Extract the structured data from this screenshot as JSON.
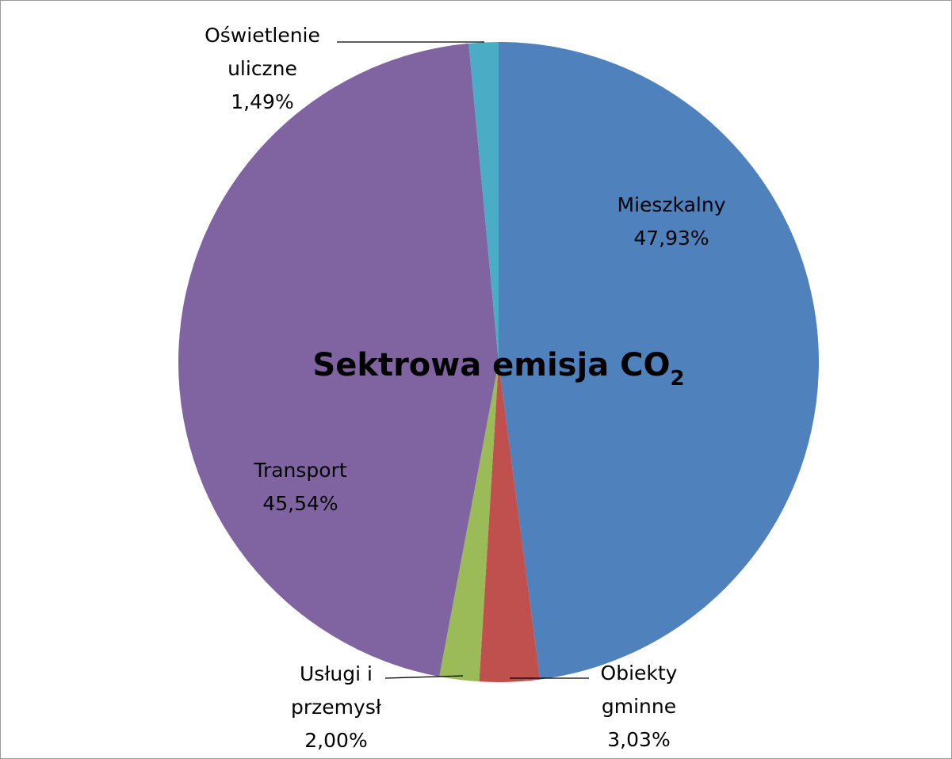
{
  "chart_data": {
    "type": "pie",
    "title": "Sektrowa emisja CO",
    "title_subscript": "2",
    "slices": [
      {
        "label_lines": [
          "Mieszkalny"
        ],
        "value": 47.93,
        "value_text": "47,93%",
        "color": "#4F81BD"
      },
      {
        "label_lines": [
          "Obiekty",
          "gminne"
        ],
        "value": 3.03,
        "value_text": "3,03%",
        "color": "#C0504D"
      },
      {
        "label_lines": [
          "Usługi i",
          "przemysł"
        ],
        "value": 2.0,
        "value_text": "2,00%",
        "color": "#9BBB59"
      },
      {
        "label_lines": [
          "Transport"
        ],
        "value": 45.54,
        "value_text": "45,54%",
        "color": "#8064A2"
      },
      {
        "label_lines": [
          "Oświetlenie",
          "uliczne"
        ],
        "value": 1.49,
        "value_text": "1,49%",
        "color": "#4BACC6"
      }
    ],
    "start": "12 o'clock",
    "direction": "clockwise",
    "legend": "none"
  }
}
